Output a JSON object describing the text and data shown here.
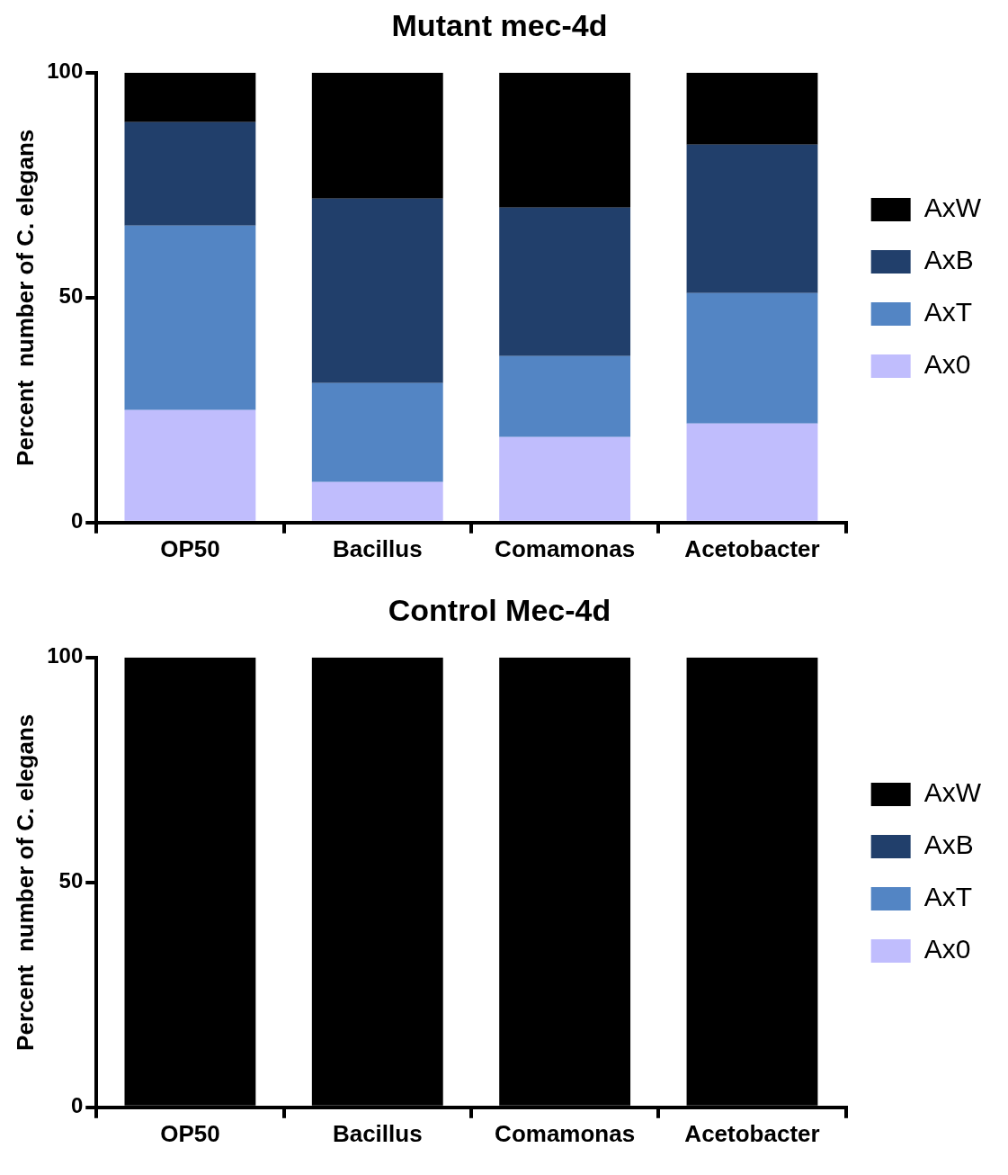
{
  "chart_data": [
    {
      "type": "bar",
      "title": "Mutant mec-4d",
      "ylabel": "Percent  number of C. elegans",
      "categories": [
        "OP50",
        "Bacillus",
        "Comamonas",
        "Acetobacter"
      ],
      "stacked": true,
      "ylim": [
        0,
        100
      ],
      "yticks": [
        0,
        50,
        100
      ],
      "grid": false,
      "legend": "right",
      "series": [
        {
          "name": "Ax0",
          "color": "#c0bdfd",
          "values": [
            25,
            9,
            19,
            22
          ]
        },
        {
          "name": "AxT",
          "color": "#5385c4",
          "values": [
            41,
            22,
            18,
            29
          ]
        },
        {
          "name": "AxB",
          "color": "#213f6b",
          "values": [
            23,
            41,
            33,
            33
          ]
        },
        {
          "name": "AxW",
          "color": "#000000",
          "values": [
            11,
            28,
            30,
            16
          ]
        }
      ]
    },
    {
      "type": "bar",
      "title": "Control Mec-4d",
      "ylabel": "Percent  number of C. elegans",
      "categories": [
        "OP50",
        "Bacillus",
        "Comamonas",
        "Acetobacter"
      ],
      "stacked": true,
      "ylim": [
        0,
        100
      ],
      "yticks": [
        0,
        50,
        100
      ],
      "grid": false,
      "legend": "right",
      "series": [
        {
          "name": "Ax0",
          "color": "#c0bdfd",
          "values": [
            0,
            0,
            0,
            0
          ]
        },
        {
          "name": "AxT",
          "color": "#5385c4",
          "values": [
            0,
            0,
            0,
            0
          ]
        },
        {
          "name": "AxB",
          "color": "#213f6b",
          "values": [
            0,
            0,
            0,
            0
          ]
        },
        {
          "name": "AxW",
          "color": "#000000",
          "values": [
            100,
            100,
            100,
            100
          ]
        }
      ]
    }
  ]
}
